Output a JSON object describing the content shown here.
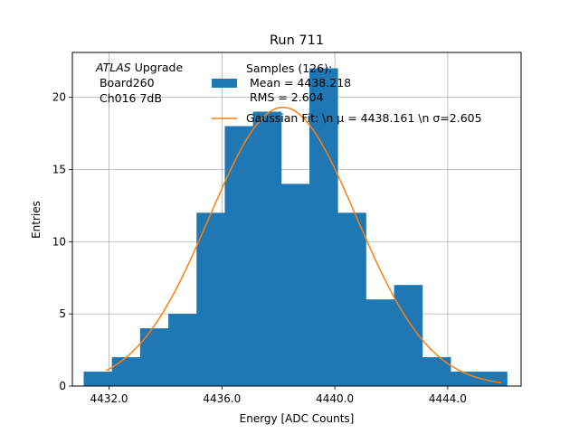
{
  "chart_data": {
    "type": "bar",
    "title": "Run 711",
    "xlabel": "Energy [ADC Counts]",
    "ylabel": "Entries",
    "xlim": [
      4430.7,
      4446.6
    ],
    "ylim": [
      0,
      23.1
    ],
    "grid": true,
    "legend_position": "top-right",
    "xticks": [
      4432.0,
      4436.0,
      4440.0,
      4444.0
    ],
    "xtick_labels": [
      "4432.0",
      "4436.0",
      "4440.0",
      "4444.0"
    ],
    "yticks": [
      0,
      5,
      10,
      15,
      20
    ],
    "ytick_labels": [
      "0",
      "5",
      "10",
      "15",
      "20"
    ],
    "bin_width": 1.0,
    "bins": [
      {
        "x": 4431.1,
        "count": 1
      },
      {
        "x": 4432.1,
        "count": 2
      },
      {
        "x": 4433.1,
        "count": 4
      },
      {
        "x": 4434.1,
        "count": 5
      },
      {
        "x": 4435.1,
        "count": 12
      },
      {
        "x": 4436.1,
        "count": 18
      },
      {
        "x": 4437.1,
        "count": 19
      },
      {
        "x": 4438.1,
        "count": 14
      },
      {
        "x": 4439.1,
        "count": 22
      },
      {
        "x": 4440.1,
        "count": 12
      },
      {
        "x": 4441.1,
        "count": 6
      },
      {
        "x": 4442.1,
        "count": 7
      },
      {
        "x": 4443.1,
        "count": 2
      },
      {
        "x": 4444.1,
        "count": 1
      },
      {
        "x": 4445.1,
        "count": 1
      }
    ],
    "fit": {
      "name": "Gaussian Fit",
      "mu": 4438.161,
      "sigma": 2.605,
      "amplitude": 19.3,
      "x_range": [
        4431.9,
        4445.9
      ]
    },
    "series": [
      {
        "name": "Samples (126):\n Mean = 4438.218\n RMS = 2.604",
        "type": "histogram",
        "color": "#1f77b4"
      },
      {
        "name": "Gaussian Fit: \\n μ = 4438.161 \\n σ=2.605",
        "type": "line",
        "color": "#ff7f0e"
      }
    ],
    "annotation": {
      "italic": "ATLAS",
      "lines": [
        " Upgrade",
        " Board260",
        " Ch016 7dB"
      ]
    }
  }
}
